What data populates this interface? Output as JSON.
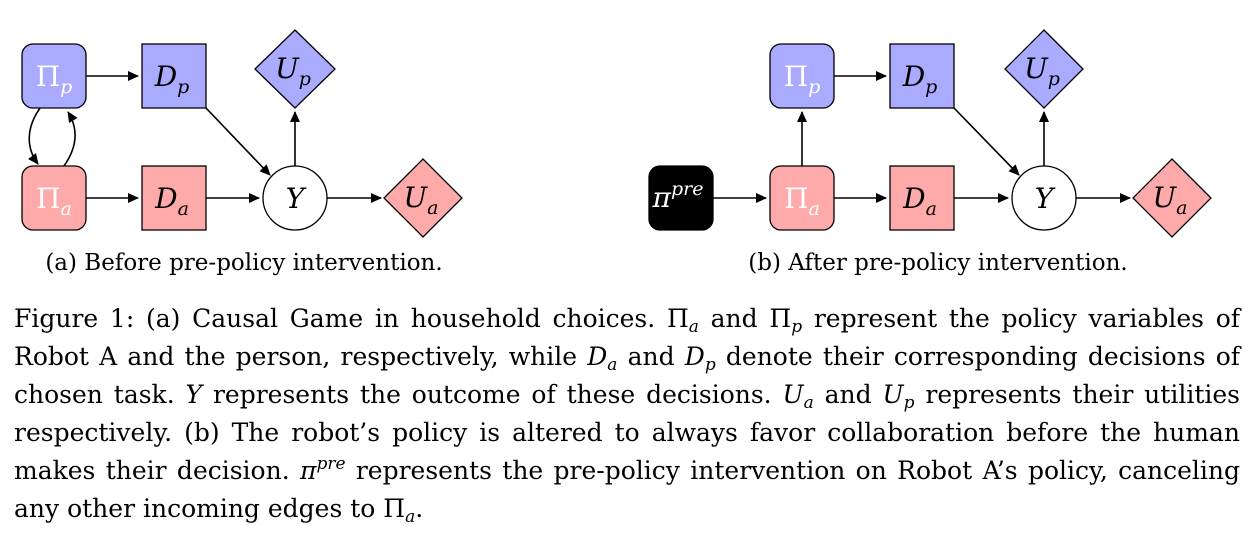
{
  "panel_a": {
    "label": "(a) Before pre-policy intervention.",
    "nodes": {
      "pi_p": {
        "main": "Π",
        "sub": "p"
      },
      "d_p": {
        "main": "D",
        "sub": "p"
      },
      "u_p": {
        "main": "U",
        "sub": "p"
      },
      "pi_a": {
        "main": "Π",
        "sub": "a"
      },
      "d_a": {
        "main": "D",
        "sub": "a"
      },
      "y": {
        "main": "Y"
      },
      "u_a": {
        "main": "U",
        "sub": "a"
      }
    }
  },
  "panel_b": {
    "label": "(b) After pre-policy intervention.",
    "nodes": {
      "pi_pre": {
        "main": "π",
        "sup": "pre"
      },
      "pi_p": {
        "main": "Π",
        "sub": "p"
      },
      "d_p": {
        "main": "D",
        "sub": "p"
      },
      "u_p": {
        "main": "U",
        "sub": "p"
      },
      "pi_a": {
        "main": "Π",
        "sub": "a"
      },
      "d_a": {
        "main": "D",
        "sub": "a"
      },
      "y": {
        "main": "Y"
      },
      "u_a": {
        "main": "U",
        "sub": "a"
      }
    }
  },
  "colors": {
    "person": "#aaaaff",
    "robot": "#ffaaaa",
    "outcome": "#ffffff",
    "intervention": "#000000"
  },
  "caption": {
    "s1": "Figure 1: (a) Causal Game in household choices. ",
    "pi": "Π",
    "a": "a",
    "p": "p",
    "and": " and ",
    "s2": " represent the policy variables of Robot A and the person, respectively, while ",
    "d": "D",
    "s3": " denote their corresponding decisions of chosen task. ",
    "y": "Y",
    "s4": " represents the outcome of these decisions. ",
    "u": "U",
    "s5": " represents their utilities respectively. (b) The robot’s policy is altered to always favor collaboration before the human makes their decision. ",
    "pi_small": "π",
    "pre": "pre",
    "s6": " represents the pre-policy intervention on Robot A’s policy, canceling any other incoming edges to ",
    "s7": "."
  }
}
